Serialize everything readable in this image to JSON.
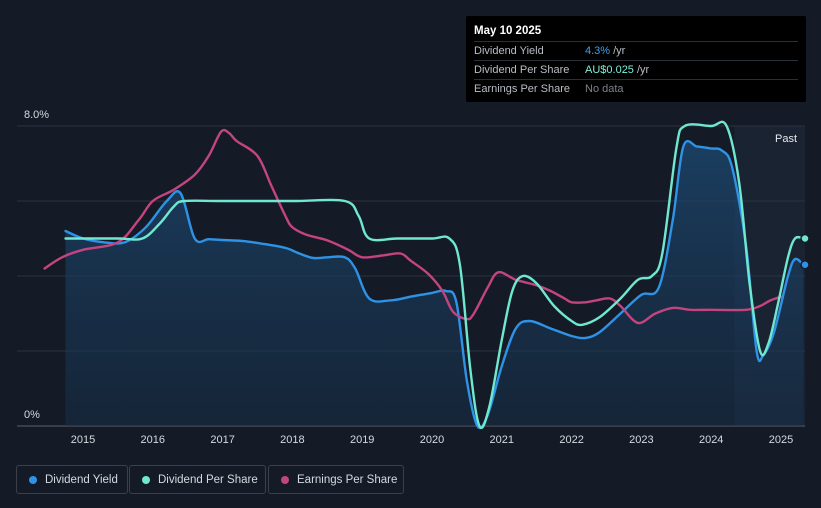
{
  "tooltip": {
    "date": "May 10 2025",
    "rows": [
      {
        "label": "Dividend Yield",
        "value": "4.3%",
        "unit": "/yr"
      },
      {
        "label": "Dividend Per Share",
        "value": "AU$0.025",
        "unit": "/yr"
      },
      {
        "label": "Earnings Per Share",
        "value": "No data",
        "unit": ""
      }
    ]
  },
  "chart_data": {
    "type": "line",
    "y_axis_labels": {
      "top": "8.0%",
      "bottom": "0%"
    },
    "ylim": [
      0,
      8
    ],
    "xlim": [
      2014.45,
      2025.32
    ],
    "x_ticks": [
      "2015",
      "2016",
      "2017",
      "2018",
      "2019",
      "2020",
      "2021",
      "2022",
      "2023",
      "2024",
      "2025"
    ],
    "grid": true,
    "past_label": "Past",
    "past_region_start": 2024.33,
    "colors": {
      "dividend_yield": "#2e93e6",
      "dividend_per_share": "#6fe8cf",
      "earnings_per_share": "#c4447f",
      "background": "#151b26"
    },
    "series": [
      {
        "name": "Dividend Yield",
        "key": "dividend_yield",
        "area": true,
        "points": [
          [
            2014.75,
            5.2
          ],
          [
            2015.0,
            5.0
          ],
          [
            2015.3,
            4.9
          ],
          [
            2015.6,
            4.9
          ],
          [
            2015.9,
            5.3
          ],
          [
            2016.2,
            6.0
          ],
          [
            2016.4,
            6.2
          ],
          [
            2016.6,
            5.0
          ],
          [
            2016.8,
            4.98
          ],
          [
            2017.0,
            4.96
          ],
          [
            2017.3,
            4.93
          ],
          [
            2017.6,
            4.85
          ],
          [
            2017.9,
            4.75
          ],
          [
            2018.1,
            4.6
          ],
          [
            2018.3,
            4.48
          ],
          [
            2018.5,
            4.5
          ],
          [
            2018.75,
            4.5
          ],
          [
            2018.9,
            4.2
          ],
          [
            2019.1,
            3.4
          ],
          [
            2019.4,
            3.35
          ],
          [
            2019.7,
            3.45
          ],
          [
            2020.0,
            3.55
          ],
          [
            2020.2,
            3.6
          ],
          [
            2020.35,
            3.3
          ],
          [
            2020.5,
            1.2
          ],
          [
            2020.65,
            0.0
          ],
          [
            2020.8,
            0.3
          ],
          [
            2021.0,
            1.6
          ],
          [
            2021.2,
            2.6
          ],
          [
            2021.4,
            2.8
          ],
          [
            2021.7,
            2.6
          ],
          [
            2022.0,
            2.4
          ],
          [
            2022.2,
            2.35
          ],
          [
            2022.4,
            2.5
          ],
          [
            2022.7,
            3.0
          ],
          [
            2023.0,
            3.5
          ],
          [
            2023.25,
            3.7
          ],
          [
            2023.45,
            5.5
          ],
          [
            2023.6,
            7.45
          ],
          [
            2023.8,
            7.45
          ],
          [
            2024.0,
            7.4
          ],
          [
            2024.15,
            7.35
          ],
          [
            2024.3,
            6.9
          ],
          [
            2024.5,
            4.8
          ],
          [
            2024.65,
            2.0
          ],
          [
            2024.75,
            1.9
          ],
          [
            2024.9,
            2.5
          ],
          [
            2025.1,
            4.0
          ],
          [
            2025.2,
            4.45
          ],
          [
            2025.32,
            4.3
          ]
        ]
      },
      {
        "name": "Dividend Per Share",
        "key": "dividend_per_share",
        "area": false,
        "points": [
          [
            2014.75,
            5.0
          ],
          [
            2015.5,
            5.0
          ],
          [
            2015.85,
            5.0
          ],
          [
            2016.1,
            5.4
          ],
          [
            2016.3,
            5.85
          ],
          [
            2016.45,
            6.0
          ],
          [
            2017.0,
            6.0
          ],
          [
            2018.0,
            6.0
          ],
          [
            2018.75,
            6.0
          ],
          [
            2018.95,
            5.6
          ],
          [
            2019.1,
            5.0
          ],
          [
            2019.5,
            5.0
          ],
          [
            2020.0,
            5.0
          ],
          [
            2020.25,
            5.0
          ],
          [
            2020.4,
            4.3
          ],
          [
            2020.55,
            1.5
          ],
          [
            2020.68,
            0.0
          ],
          [
            2020.82,
            0.5
          ],
          [
            2021.0,
            2.3
          ],
          [
            2021.15,
            3.6
          ],
          [
            2021.3,
            4.0
          ],
          [
            2021.5,
            3.8
          ],
          [
            2021.75,
            3.2
          ],
          [
            2022.0,
            2.8
          ],
          [
            2022.15,
            2.7
          ],
          [
            2022.4,
            2.9
          ],
          [
            2022.7,
            3.4
          ],
          [
            2022.95,
            3.9
          ],
          [
            2023.15,
            4.0
          ],
          [
            2023.3,
            4.6
          ],
          [
            2023.5,
            7.4
          ],
          [
            2023.62,
            8.0
          ],
          [
            2024.0,
            8.0
          ],
          [
            2024.22,
            8.0
          ],
          [
            2024.4,
            6.5
          ],
          [
            2024.55,
            3.8
          ],
          [
            2024.7,
            2.0
          ],
          [
            2024.82,
            2.2
          ],
          [
            2024.95,
            3.2
          ],
          [
            2025.1,
            4.5
          ],
          [
            2025.2,
            5.0
          ],
          [
            2025.32,
            5.0
          ]
        ]
      },
      {
        "name": "Earnings Per Share",
        "key": "earnings_per_share",
        "area": false,
        "points": [
          [
            2014.45,
            4.2
          ],
          [
            2014.7,
            4.5
          ],
          [
            2015.0,
            4.7
          ],
          [
            2015.5,
            4.9
          ],
          [
            2015.8,
            5.5
          ],
          [
            2016.0,
            6.0
          ],
          [
            2016.3,
            6.3
          ],
          [
            2016.6,
            6.7
          ],
          [
            2016.8,
            7.2
          ],
          [
            2016.98,
            7.85
          ],
          [
            2017.1,
            7.8
          ],
          [
            2017.2,
            7.6
          ],
          [
            2017.5,
            7.2
          ],
          [
            2017.7,
            6.4
          ],
          [
            2017.9,
            5.6
          ],
          [
            2018.0,
            5.3
          ],
          [
            2018.2,
            5.1
          ],
          [
            2018.5,
            4.95
          ],
          [
            2018.8,
            4.7
          ],
          [
            2019.0,
            4.5
          ],
          [
            2019.3,
            4.55
          ],
          [
            2019.55,
            4.6
          ],
          [
            2019.7,
            4.4
          ],
          [
            2019.95,
            4.05
          ],
          [
            2020.15,
            3.6
          ],
          [
            2020.3,
            3.05
          ],
          [
            2020.5,
            2.85
          ],
          [
            2020.6,
            3.0
          ],
          [
            2020.8,
            3.7
          ],
          [
            2020.95,
            4.1
          ],
          [
            2021.2,
            3.9
          ],
          [
            2021.5,
            3.75
          ],
          [
            2021.7,
            3.6
          ],
          [
            2021.9,
            3.4
          ],
          [
            2022.0,
            3.3
          ],
          [
            2022.2,
            3.3
          ],
          [
            2022.35,
            3.35
          ],
          [
            2022.55,
            3.4
          ],
          [
            2022.7,
            3.2
          ],
          [
            2022.95,
            2.75
          ],
          [
            2023.2,
            3.0
          ],
          [
            2023.45,
            3.15
          ],
          [
            2023.7,
            3.1
          ],
          [
            2024.0,
            3.1
          ],
          [
            2024.5,
            3.1
          ],
          [
            2024.7,
            3.2
          ],
          [
            2024.85,
            3.35
          ],
          [
            2025.0,
            3.45
          ]
        ]
      }
    ],
    "legend": [
      {
        "name": "Dividend Yield",
        "key": "dividend_yield"
      },
      {
        "name": "Dividend Per Share",
        "key": "dividend_per_share"
      },
      {
        "name": "Earnings Per Share",
        "key": "earnings_per_share"
      }
    ]
  }
}
